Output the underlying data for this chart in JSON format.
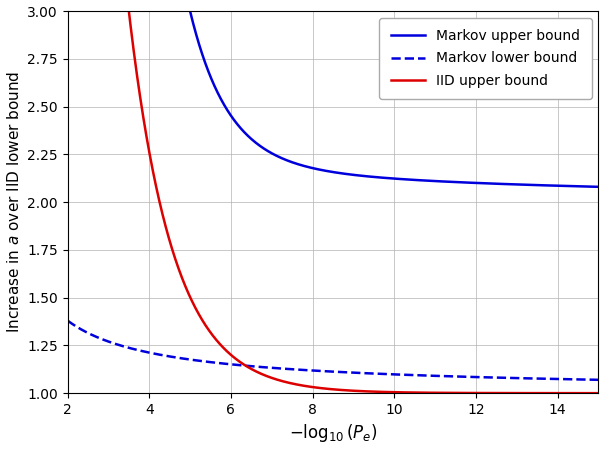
{
  "xlim": [
    2,
    15
  ],
  "ylim": [
    1.0,
    3.0
  ],
  "xticks": [
    2,
    4,
    6,
    8,
    10,
    12,
    14
  ],
  "yticks": [
    1.0,
    1.25,
    1.5,
    1.75,
    2.0,
    2.25,
    2.5,
    2.75,
    3.0
  ],
  "xlabel": "$-\\log_{10}(P_e)$",
  "ylabel": "Increase in $a$ over IID lower bound",
  "legend_labels": [
    "Markov upper bound",
    "Markov lower bound",
    "IID upper bound"
  ],
  "line_colors": [
    "#0000dd",
    "#0000dd",
    "#dd0000"
  ],
  "line_styles": [
    "solid",
    "dashed",
    "solid"
  ],
  "figsize": [
    6.04,
    4.5
  ],
  "dpi": 100,
  "grid_color": "#b0b0b0",
  "background_color": "#ffffff",
  "linewidth": 1.8
}
